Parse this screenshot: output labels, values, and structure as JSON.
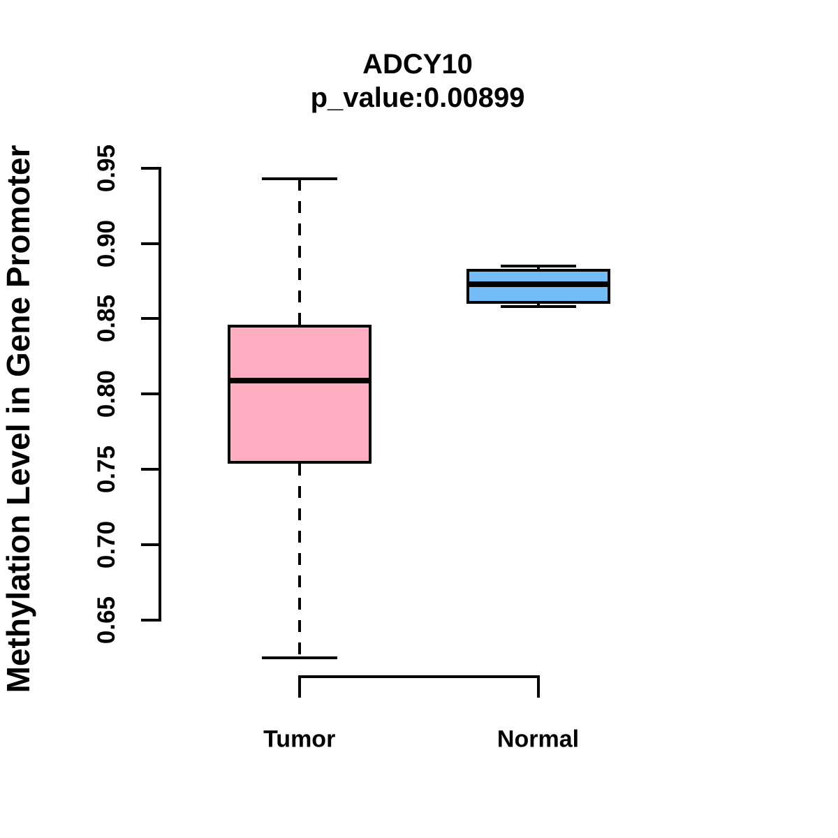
{
  "page": {
    "background_color": "#ffffff",
    "text_color": "#000000"
  },
  "chart_data": {
    "type": "boxplot",
    "title": "ADCY10",
    "subtitle": "p_value:0.00899",
    "ylabel": "Methylation Level in Gene Promoter",
    "xlabel": "",
    "categories": [
      "Tumor",
      "Normal"
    ],
    "ytick_labels": [
      "0.95",
      "0.90",
      "0.85",
      "0.80",
      "0.75",
      "0.70",
      "0.65"
    ],
    "ylim": [
      0.65,
      0.95
    ],
    "grid": false,
    "legend": false,
    "axis_color": "#000000",
    "series": [
      {
        "name": "Tumor",
        "fill_color": "#FFAEC1",
        "whisker_low": 0.625,
        "q1": 0.754,
        "median": 0.809,
        "q3": 0.846,
        "whisker_high": 0.943
      },
      {
        "name": "Normal",
        "fill_color": "#73BCF8",
        "whisker_low": 0.858,
        "q1": 0.86,
        "median": 0.873,
        "q3": 0.883,
        "whisker_high": 0.885
      }
    ]
  }
}
